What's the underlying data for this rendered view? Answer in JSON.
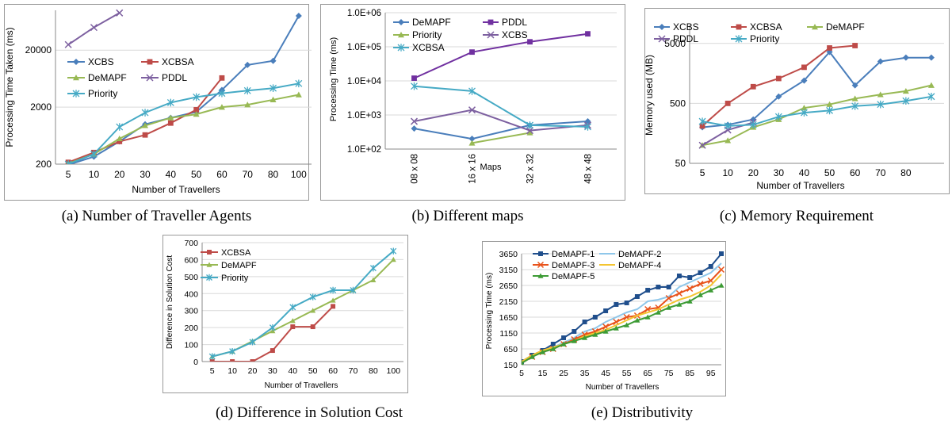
{
  "figure": {
    "captions": [
      "(a) Number of Traveller Agents",
      "(b) Different maps",
      "(c) Memory Requirement",
      "(d) Difference in Solution Cost",
      "(e) Distributivity"
    ]
  },
  "chart_data": [
    {
      "id": "a",
      "type": "line",
      "title": "",
      "xlabel": "Number of Travellers",
      "ylabel": "Processing Time Taken (ms)",
      "x": [
        "5",
        "10",
        "20",
        "30",
        "40",
        "50",
        "60",
        "70",
        "80",
        "100"
      ],
      "yscale": "log",
      "ylim": [
        200,
        100000
      ],
      "yticks": [
        "200",
        "2000",
        "20000"
      ],
      "ytick_values": [
        200,
        2000,
        20000
      ],
      "legend": "left",
      "series": [
        {
          "name": "XCBS",
          "color": "#4a7ebb",
          "marker": "diamond",
          "values": [
            195,
            270,
            500,
            1000,
            1300,
            1650,
            4000,
            11000,
            13000,
            80000
          ]
        },
        {
          "name": "XCBSA",
          "color": "#be4b48",
          "marker": "square",
          "values": [
            215,
            320,
            500,
            650,
            1050,
            1800,
            6500,
            null,
            null,
            null
          ]
        },
        {
          "name": "DeMAPF",
          "color": "#98b954",
          "marker": "triangle",
          "values": [
            205,
            300,
            560,
            950,
            1300,
            1500,
            2000,
            2200,
            2700,
            3300
          ]
        },
        {
          "name": "PDDL",
          "color": "#7d60a0",
          "marker": "x",
          "values": [
            25000,
            50000,
            90000,
            null,
            null,
            null,
            null,
            null,
            null,
            null
          ]
        },
        {
          "name": "Priority",
          "color": "#46aac5",
          "marker": "star",
          "values": [
            200,
            300,
            900,
            1600,
            2400,
            3000,
            3500,
            3900,
            4300,
            5200
          ]
        }
      ]
    },
    {
      "id": "b",
      "type": "line",
      "title": "",
      "xlabel": "Maps",
      "ylabel": "Processing Time (ms)",
      "x": [
        "08 x 08",
        "16 x 16",
        "32 x 32",
        "48 x 48"
      ],
      "yscale": "log",
      "ylim": [
        100,
        1000000
      ],
      "yticks": [
        "1.0E+02",
        "1.0E+03",
        "1.0E+04",
        "1.0E+05",
        "1.0E+06"
      ],
      "ytick_values": [
        100,
        1000,
        10000,
        100000,
        1000000
      ],
      "legend": "top",
      "series": [
        {
          "name": "DeMAPF",
          "color": "#4a7ebb",
          "marker": "diamond",
          "values": [
            400,
            200,
            500,
            650
          ]
        },
        {
          "name": "PDDL",
          "color": "#7030a0",
          "marker": "square",
          "values": [
            12000,
            70000,
            140000,
            240000
          ]
        },
        {
          "name": "Priority",
          "color": "#98b954",
          "marker": "triangle",
          "values": [
            null,
            150,
            300,
            null
          ]
        },
        {
          "name": "XCBS",
          "color": "#7d60a0",
          "marker": "x",
          "values": [
            650,
            1400,
            350,
            500
          ]
        },
        {
          "name": "XCBSA",
          "color": "#46aac5",
          "marker": "star",
          "values": [
            7000,
            5000,
            500,
            450
          ]
        }
      ]
    },
    {
      "id": "c",
      "type": "line",
      "title": "",
      "xlabel": "Number of Travellers",
      "ylabel": "Memory used (MB)",
      "x": [
        "5",
        "10",
        "20",
        "30",
        "40",
        "50",
        "60",
        "70",
        "80",
        ""
      ],
      "yscale": "log",
      "ylim": [
        50,
        10000
      ],
      "yticks": [
        "50",
        "500",
        "5000"
      ],
      "ytick_values": [
        50,
        500,
        5000
      ],
      "legend": "top",
      "series": [
        {
          "name": "XCBS",
          "color": "#4a7ebb",
          "marker": "diamond",
          "values": [
            200,
            220,
            270,
            650,
            1200,
            3600,
            1000,
            2500,
            2900,
            2900
          ]
        },
        {
          "name": "XCBSA",
          "color": "#be4b48",
          "marker": "square",
          "values": [
            210,
            500,
            950,
            1300,
            2000,
            4200,
            4600,
            null,
            null,
            null
          ]
        },
        {
          "name": "DeMAPF",
          "color": "#98b954",
          "marker": "triangle",
          "values": [
            100,
            120,
            200,
            270,
            420,
            480,
            600,
            700,
            800,
            1000
          ]
        },
        {
          "name": "PDDL",
          "color": "#7d60a0",
          "marker": "x",
          "values": [
            100,
            180,
            240,
            null,
            null,
            null,
            null,
            null,
            null,
            null
          ]
        },
        {
          "name": "Priority",
          "color": "#46aac5",
          "marker": "star",
          "values": [
            250,
            210,
            220,
            300,
            350,
            380,
            450,
            480,
            550,
            650
          ]
        }
      ]
    },
    {
      "id": "d",
      "type": "line",
      "title": "",
      "xlabel": "Number of Travellers",
      "ylabel": "Difference in Solution Cost",
      "x": [
        "5",
        "10",
        "20",
        "30",
        "40",
        "50",
        "60",
        "70",
        "80",
        "100"
      ],
      "ylim": [
        0,
        700
      ],
      "yticks": [
        "0",
        "100",
        "200",
        "300",
        "400",
        "500",
        "600",
        "700"
      ],
      "ytick_values": [
        0,
        100,
        200,
        300,
        400,
        500,
        600,
        700
      ],
      "legend": "top-left",
      "series": [
        {
          "name": "XCBSA",
          "color": "#be4b48",
          "marker": "square",
          "values": [
            0,
            0,
            0,
            65,
            205,
            205,
            325,
            null,
            null,
            null
          ]
        },
        {
          "name": "DeMAPF",
          "color": "#98b954",
          "marker": "triangle",
          "values": [
            30,
            60,
            120,
            180,
            240,
            300,
            360,
            420,
            480,
            600
          ]
        },
        {
          "name": "Priority",
          "color": "#46aac5",
          "marker": "star",
          "values": [
            30,
            60,
            115,
            200,
            320,
            380,
            420,
            420,
            550,
            650
          ]
        }
      ]
    },
    {
      "id": "e",
      "type": "line",
      "title": "",
      "xlabel": "Number of Travellers",
      "ylabel": "Processing Time (ms)",
      "x": [
        "5",
        "10",
        "15",
        "20",
        "25",
        "30",
        "35",
        "40",
        "45",
        "50",
        "55",
        "60",
        "65",
        "70",
        "75",
        "80",
        "85",
        "90",
        "95",
        "100"
      ],
      "xticks": [
        "5",
        "15",
        "25",
        "35",
        "45",
        "55",
        "65",
        "75",
        "85",
        "95"
      ],
      "ylim": [
        150,
        3650
      ],
      "yticks": [
        "150",
        "650",
        "1150",
        "1650",
        "2150",
        "2650",
        "3150",
        "3650"
      ],
      "ytick_values": [
        150,
        650,
        1150,
        1650,
        2150,
        2650,
        3150,
        3650
      ],
      "legend": "top-left",
      "series": [
        {
          "name": "DeMAPF-1",
          "color": "#1f4e8c",
          "marker": "square",
          "values": [
            250,
            450,
            600,
            800,
            1000,
            1200,
            1500,
            1650,
            1850,
            2050,
            2100,
            2300,
            2500,
            2600,
            2600,
            2950,
            2900,
            3050,
            3250,
            3650
          ]
        },
        {
          "name": "DeMAPF-2",
          "color": "#8fc7ea",
          "marker": "none",
          "values": [
            250,
            400,
            550,
            700,
            850,
            1000,
            1200,
            1300,
            1500,
            1650,
            1800,
            1900,
            2150,
            2200,
            2300,
            2600,
            2750,
            2900,
            3050,
            3350
          ]
        },
        {
          "name": "DeMAPF-3",
          "color": "#e8521a",
          "marker": "x",
          "values": [
            200,
            400,
            550,
            650,
            800,
            950,
            1100,
            1200,
            1350,
            1500,
            1650,
            1700,
            1900,
            1950,
            2250,
            2400,
            2550,
            2700,
            2800,
            3150
          ]
        },
        {
          "name": "DeMAPF-4",
          "color": "#f4c531",
          "marker": "none",
          "values": [
            250,
            450,
            600,
            700,
            800,
            900,
            1050,
            1150,
            1250,
            1400,
            1550,
            1700,
            1800,
            1900,
            2050,
            2200,
            2300,
            2450,
            2650,
            3000
          ]
        },
        {
          "name": "DeMAPF-5",
          "color": "#3d9b35",
          "marker": "triangle",
          "values": [
            200,
            400,
            550,
            650,
            800,
            900,
            1000,
            1100,
            1200,
            1300,
            1400,
            1550,
            1650,
            1800,
            1950,
            2050,
            2150,
            2350,
            2500,
            2650
          ]
        }
      ]
    }
  ]
}
